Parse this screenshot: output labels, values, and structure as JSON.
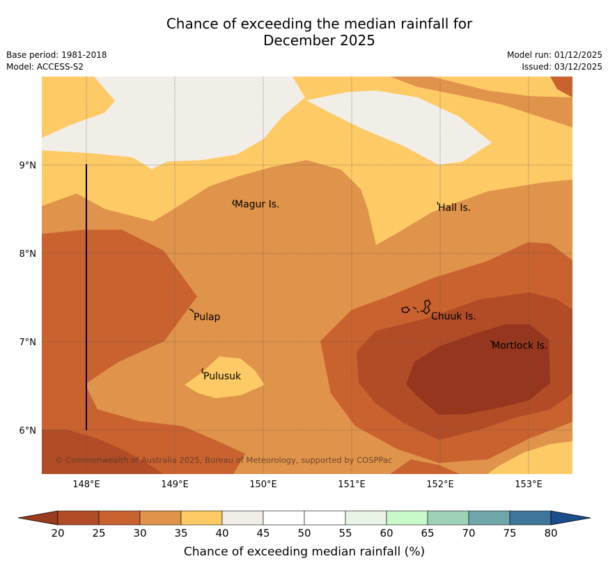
{
  "title_line1": "Chance of exceeding the median rainfall for",
  "title_line2": "December 2025",
  "base_period": "Base period: 1981-2018",
  "model": "Model: ACCESS-S2",
  "model_run": "Model run: 01/12/2025",
  "issued": "Issued: 03/12/2025",
  "copyright": "© Commonwealth of Australia 2025, Bureau of Meteorology, supported by COSPPac",
  "lon_labels": [
    "148°E",
    "149°E",
    "150°E",
    "151°E",
    "152°E",
    "153°E"
  ],
  "lat_labels": [
    "9°N",
    "8°N",
    "7°N",
    "6°N"
  ],
  "places": {
    "magur": "Magur Is.",
    "hall": "Hall Is.",
    "pulap": "Pulap",
    "chuuk": "Chuuk Is.",
    "mortlock": "Mortlock Is.",
    "pulusuk": "Pulusuk"
  },
  "colorbar": {
    "label": "Chance of exceeding median rainfall (%)",
    "ticks": [
      "20",
      "25",
      "30",
      "35",
      "40",
      "45",
      "50",
      "55",
      "60",
      "65",
      "70",
      "75",
      "80"
    ],
    "colors": [
      "#9a3a1e",
      "#b14c26",
      "#c9622f",
      "#e0934a",
      "#fdca66",
      "#f1ede7",
      "#ffffff",
      "#ffffff",
      "#e9f4e6",
      "#c9f9c9",
      "#9dd2b8",
      "#6fa6aa",
      "#3f7598",
      "#1a4e8c"
    ]
  }
}
